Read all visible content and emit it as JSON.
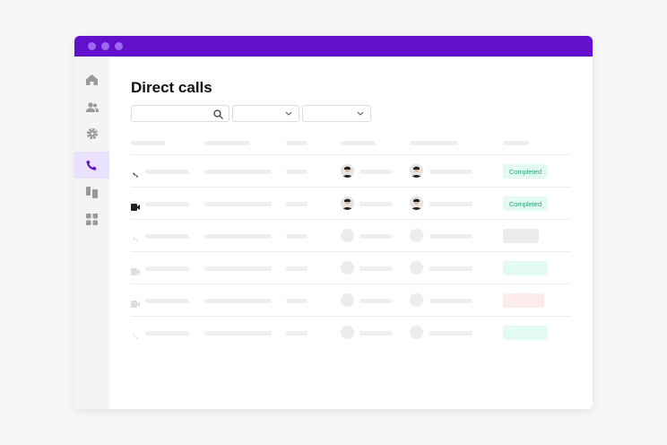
{
  "window": {
    "accent": "#6210cc"
  },
  "sidebar": {
    "items": [
      {
        "icon": "home-icon"
      },
      {
        "icon": "users-icon"
      },
      {
        "icon": "gear-icon"
      },
      {
        "icon": "phone-icon",
        "active": true
      },
      {
        "icon": "devices-icon"
      },
      {
        "icon": "grid-icon"
      }
    ]
  },
  "page": {
    "title": "Direct calls"
  },
  "filters": {
    "search_placeholder": "",
    "select1": "",
    "select2": ""
  },
  "rows": [
    {
      "type": "phone",
      "status": "Completed",
      "status_color": "#e3faf2",
      "faded": false
    },
    {
      "type": "video",
      "status": "Completed",
      "status_color": "#e3faf2",
      "faded": false
    },
    {
      "type": "phone",
      "status": "",
      "status_color": "#ececec",
      "faded": true
    },
    {
      "type": "video",
      "status": "",
      "status_color": "#e3faf2",
      "faded": true
    },
    {
      "type": "video",
      "status": "",
      "status_color": "#fdeaea",
      "faded": true
    },
    {
      "type": "phone",
      "status": "",
      "status_color": "#e3faf2",
      "faded": true
    }
  ]
}
